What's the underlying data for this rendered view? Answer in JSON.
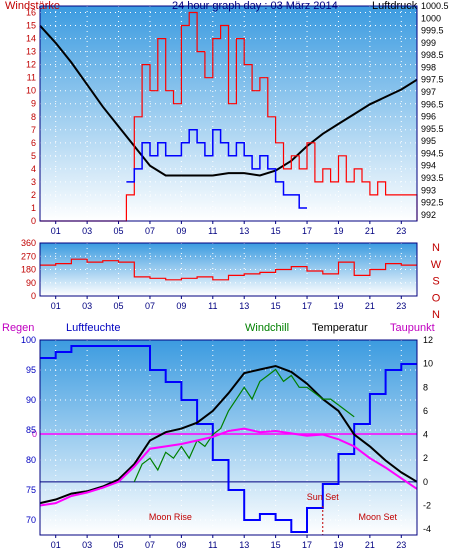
{
  "colors": {
    "frame": "#000080",
    "bg_top": "#3b9be0",
    "bg_bottom": "#ffffff",
    "wind_gust": "#ff0000",
    "wind_mean": "#0000ff",
    "pressure": "#000000",
    "direction": "#ff0000",
    "humidity": "#0000ff",
    "windchill": "#008000",
    "temperature": "#000000",
    "dewpoint": "#ff00ff",
    "rain_line": "#ff00ff",
    "zero_line": "#000080",
    "sun_moon": "#c00000"
  },
  "chart_data": [
    {
      "type": "line",
      "panel": "wind_pressure",
      "title": "24 hour graph day : 03 März 2014",
      "left_label": "Windstärke",
      "right_label": "Luftdruck",
      "x_ticks": [
        "01",
        "03",
        "05",
        "07",
        "09",
        "11",
        "13",
        "15",
        "17",
        "19",
        "21",
        "23"
      ],
      "y_left_ticks": [
        "0",
        "1",
        "2",
        "3",
        "4",
        "5",
        "6",
        "7",
        "8",
        "9",
        "10",
        "11",
        "12",
        "13",
        "14",
        "15",
        "16"
      ],
      "y_left_range": [
        0,
        16.5
      ],
      "y_right_ticks": [
        "992",
        "992.5",
        "993",
        "993.5",
        "994",
        "994.5",
        "995",
        "995.5",
        "996",
        "996.5",
        "997",
        "997.5",
        "998",
        "998.5",
        "999",
        "999.5",
        "1000",
        "1000.5"
      ],
      "y_right_range": [
        991.75,
        1000.5
      ],
      "series": [
        {
          "key": "pressure",
          "x": [
            0,
            1,
            2,
            3,
            4,
            5,
            6,
            7,
            8,
            9,
            10,
            11,
            12,
            13,
            14,
            15,
            16,
            17,
            18,
            19,
            20,
            21,
            22,
            23,
            24
          ],
          "values": [
            999.7,
            999.0,
            998.2,
            997.3,
            996.4,
            995.6,
            994.8,
            994.0,
            993.6,
            993.6,
            993.6,
            993.6,
            993.7,
            993.7,
            993.6,
            993.8,
            994.2,
            994.8,
            995.3,
            995.7,
            996.1,
            996.5,
            996.8,
            997.1,
            997.5
          ]
        },
        {
          "key": "wind_gust",
          "x": [
            0,
            5,
            5.5,
            6,
            6.5,
            7,
            7.5,
            8,
            8.5,
            9,
            9.5,
            10,
            10.5,
            11,
            11.5,
            12,
            12.5,
            13,
            13.5,
            14,
            14.5,
            15,
            15.5,
            16,
            16.5,
            17,
            17.5,
            18,
            18.5,
            19,
            19.5,
            20,
            20.5,
            21,
            21.5,
            22,
            22.5,
            23,
            23.5,
            24
          ],
          "values": [
            0,
            0,
            2,
            8,
            12,
            10,
            14,
            10,
            9,
            15,
            16,
            13,
            11,
            14,
            15,
            9,
            14,
            12,
            10,
            11,
            8,
            6,
            4,
            5,
            4,
            6,
            3,
            4,
            3,
            5,
            3,
            4,
            3,
            2,
            3,
            2,
            2,
            2,
            2,
            0
          ]
        },
        {
          "key": "wind_mean",
          "x": [
            5.5,
            6,
            6.5,
            7,
            7.5,
            8,
            8.5,
            9,
            9.5,
            10,
            10.5,
            11,
            11.5,
            12,
            12.5,
            13,
            13.5,
            14,
            14.5,
            15,
            15.5,
            16,
            16.5,
            17
          ],
          "values": [
            3,
            4,
            6,
            5,
            6,
            5,
            5,
            6,
            7,
            6,
            5,
            7,
            6,
            5,
            6,
            5,
            4,
            5,
            4,
            3,
            2,
            2,
            1,
            1
          ]
        }
      ]
    },
    {
      "type": "line",
      "panel": "wind_direction",
      "x_ticks": [
        "01",
        "03",
        "05",
        "07",
        "09",
        "11",
        "13",
        "15",
        "17",
        "19",
        "21",
        "23"
      ],
      "y_ticks": [
        "0",
        "90",
        "180",
        "270",
        "360"
      ],
      "y_range": [
        0,
        360
      ],
      "direction_labels": [
        "N",
        "W",
        "S",
        "O",
        "N"
      ],
      "series": [
        {
          "key": "direction",
          "x": [
            0,
            1,
            2,
            3,
            4,
            5,
            6,
            7,
            8,
            9,
            10,
            11,
            12,
            13,
            14,
            15,
            16,
            17,
            18,
            19,
            20,
            21,
            22,
            23,
            24
          ],
          "values": [
            210,
            220,
            250,
            230,
            240,
            230,
            130,
            120,
            110,
            120,
            130,
            110,
            140,
            150,
            160,
            180,
            200,
            170,
            150,
            230,
            140,
            180,
            220,
            210,
            210
          ]
        }
      ]
    },
    {
      "type": "line",
      "panel": "temperature_humidity",
      "labels": {
        "rain": "Regen",
        "humidity": "Luftfeuchte",
        "windchill": "Windchill",
        "temperature": "Temperatur",
        "dewpoint": "Taupunkt"
      },
      "x_ticks": [
        "01",
        "03",
        "05",
        "07",
        "09",
        "11",
        "13",
        "15",
        "17",
        "19",
        "21",
        "23"
      ],
      "y_left_ticks": [
        "70",
        "75",
        "80",
        "85",
        "90",
        "95",
        "100"
      ],
      "y_left_range": [
        67.5,
        100
      ],
      "y_right_ticks": [
        "-4",
        "-2",
        "0",
        "2",
        "4",
        "6",
        "8",
        "10",
        "12"
      ],
      "y_right_range": [
        -4.5,
        12
      ],
      "rain_axis_label": "0",
      "rain_value": 0,
      "annotations": [
        {
          "text": "Moon Rise",
          "x": 8.3
        },
        {
          "text": "Sun Set",
          "x": 18.0
        },
        {
          "text": "Moon Set",
          "x": 21.5
        }
      ],
      "series": [
        {
          "key": "humidity",
          "x": [
            0,
            1,
            2,
            3,
            4,
            5,
            6,
            7,
            8,
            9,
            10,
            11,
            12,
            13,
            14,
            15,
            16,
            17,
            18,
            19,
            20,
            21,
            22,
            23,
            24
          ],
          "values": [
            97,
            98,
            99,
            99,
            99,
            99,
            99,
            95,
            93,
            90,
            86,
            80,
            75,
            70,
            71,
            70,
            68,
            72,
            76,
            81,
            86,
            91,
            95,
            96,
            96
          ]
        },
        {
          "key": "temperature",
          "x": [
            0,
            1,
            2,
            3,
            4,
            5,
            6,
            7,
            8,
            9,
            10,
            11,
            12,
            13,
            14,
            15,
            16,
            17,
            18,
            19,
            20,
            21,
            22,
            23,
            24
          ],
          "values": [
            -1.8,
            -1.5,
            -1.0,
            -0.8,
            -0.4,
            0.2,
            1.5,
            3.5,
            4.2,
            4.5,
            5.0,
            6.0,
            7.5,
            9.2,
            9.5,
            9.8,
            9.3,
            8.3,
            7.0,
            6.0,
            4.0,
            3.0,
            1.8,
            0.8,
            0.0
          ]
        },
        {
          "key": "windchill",
          "x": [
            6,
            6.5,
            7,
            7.5,
            8,
            8.5,
            9,
            9.5,
            10,
            10.5,
            11,
            11.5,
            12,
            12.5,
            13,
            13.5,
            14,
            14.5,
            15,
            15.5,
            16,
            16.5,
            17,
            17.5,
            18,
            18.5,
            19,
            19.5,
            20
          ],
          "values": [
            0,
            1.5,
            2,
            1,
            2.5,
            2,
            3,
            2,
            3.5,
            3,
            4,
            4.5,
            6,
            7,
            8,
            7,
            8.5,
            9,
            9.5,
            8.5,
            9,
            8,
            8,
            7.5,
            7,
            7,
            6.5,
            6,
            5.5
          ]
        },
        {
          "key": "dewpoint",
          "x": [
            0,
            1,
            2,
            3,
            4,
            5,
            6,
            7,
            8,
            9,
            10,
            11,
            12,
            13,
            14,
            15,
            16,
            17,
            18,
            19,
            20,
            21,
            22,
            23,
            24
          ],
          "values": [
            -2.0,
            -1.8,
            -1.2,
            -0.9,
            -0.5,
            0.0,
            1.3,
            2.8,
            3.0,
            3.2,
            3.5,
            3.8,
            4.3,
            4.5,
            4.2,
            4.3,
            4.1,
            3.9,
            4.0,
            3.6,
            3.0,
            2.0,
            1.2,
            0.3,
            -0.6
          ]
        }
      ]
    }
  ]
}
